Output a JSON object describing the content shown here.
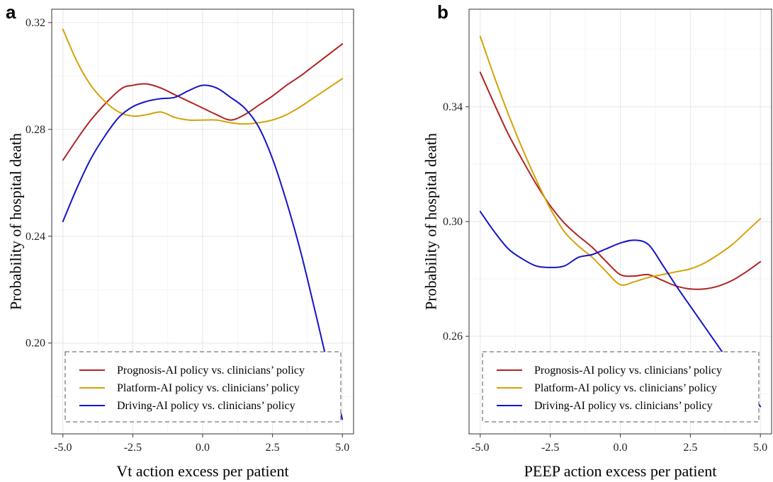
{
  "chart_data": [
    {
      "type": "line",
      "panel_label": "a",
      "xlabel": "Vt action excess per patient",
      "ylabel": "Probability of hospital death",
      "xlim": [
        -5.4,
        5.4
      ],
      "ylim": [
        0.166,
        0.325
      ],
      "x_ticks": [
        -5,
        -2.5,
        0,
        2.5,
        5
      ],
      "x_tick_labels": [
        "-5.0",
        "-2.5",
        "0.0",
        "2.5",
        "5.0"
      ],
      "y_ticks": [
        0.2,
        0.24,
        0.28,
        0.32
      ],
      "y_tick_labels": [
        "0.20",
        "0.24",
        "0.28",
        "0.32"
      ],
      "grid": true,
      "legend_position": "bottom",
      "series": [
        {
          "name": "Prognosis-AI policy vs. clinicians’ policy",
          "color": "#b22222",
          "x": [
            -5,
            -4,
            -3,
            -2.5,
            -2,
            -1.5,
            -1,
            -0.5,
            0,
            0.5,
            1,
            1.5,
            2,
            2.5,
            3,
            3.5,
            4,
            4.5,
            5
          ],
          "y": [
            0.2685,
            0.2835,
            0.2945,
            0.2965,
            0.297,
            0.2955,
            0.293,
            0.2905,
            0.288,
            0.2855,
            0.2835,
            0.2855,
            0.289,
            0.2925,
            0.2965,
            0.3,
            0.304,
            0.308,
            0.312
          ]
        },
        {
          "name": "Platform-AI policy vs. clinicians’ policy",
          "color": "#d4a20a",
          "x": [
            -5,
            -4.5,
            -4,
            -3.5,
            -3,
            -2.5,
            -2,
            -1.5,
            -1,
            -0.5,
            0,
            0.5,
            1,
            1.5,
            2,
            2.5,
            3,
            3.5,
            4,
            4.5,
            5
          ],
          "y": [
            0.3175,
            0.3055,
            0.2965,
            0.2905,
            0.2865,
            0.285,
            0.2855,
            0.2865,
            0.2845,
            0.2835,
            0.2835,
            0.2835,
            0.2825,
            0.282,
            0.2825,
            0.2835,
            0.2855,
            0.2885,
            0.292,
            0.2955,
            0.299
          ]
        },
        {
          "name": "Driving-AI policy vs. clinicians’ policy",
          "color": "#1414c8",
          "x": [
            -5,
            -4.5,
            -4,
            -3.5,
            -3,
            -2.5,
            -2,
            -1.5,
            -1,
            -0.5,
            0,
            0.5,
            1,
            1.5,
            2,
            2.5,
            3,
            3.5,
            4,
            4.5,
            5
          ],
          "y": [
            0.2455,
            0.258,
            0.269,
            0.2775,
            0.2845,
            0.2885,
            0.2905,
            0.2915,
            0.292,
            0.2945,
            0.2965,
            0.2955,
            0.292,
            0.288,
            0.281,
            0.269,
            0.253,
            0.2345,
            0.213,
            0.191,
            0.1715
          ]
        }
      ]
    },
    {
      "type": "line",
      "panel_label": "b",
      "xlabel": "PEEP action excess per patient",
      "ylabel": "Probability of hospital death",
      "xlim": [
        -5.4,
        5.4
      ],
      "ylim": [
        0.226,
        0.374
      ],
      "x_ticks": [
        -5,
        -2.5,
        0,
        2.5,
        5
      ],
      "x_tick_labels": [
        "-5.0",
        "-2.5",
        "0.0",
        "2.5",
        "5.0"
      ],
      "y_ticks": [
        0.26,
        0.3,
        0.34
      ],
      "y_tick_labels": [
        "0.26",
        "0.30",
        "0.34"
      ],
      "grid": true,
      "legend_position": "bottom",
      "series": [
        {
          "name": "Prognosis-AI policy vs. clinicians’ policy",
          "color": "#b22222",
          "x": [
            -5,
            -4.5,
            -4,
            -3.5,
            -3,
            -2.5,
            -2,
            -1.5,
            -1,
            -0.5,
            0,
            0.5,
            1,
            1.5,
            2,
            2.5,
            3,
            3.5,
            4,
            4.5,
            5
          ],
          "y": [
            0.352,
            0.341,
            0.3305,
            0.3215,
            0.313,
            0.3055,
            0.2995,
            0.295,
            0.291,
            0.286,
            0.2815,
            0.281,
            0.2815,
            0.2795,
            0.2775,
            0.2765,
            0.2765,
            0.2775,
            0.2795,
            0.2825,
            0.286
          ]
        },
        {
          "name": "Platform-AI policy vs. clinicians’ policy",
          "color": "#d4a20a",
          "x": [
            -5,
            -4.5,
            -4,
            -3.5,
            -3,
            -2.5,
            -2,
            -1.5,
            -1,
            -0.5,
            0,
            0.5,
            1,
            1.5,
            2,
            2.5,
            3,
            3.5,
            4,
            4.5,
            5
          ],
          "y": [
            0.3645,
            0.3505,
            0.3375,
            0.3255,
            0.3145,
            0.3045,
            0.2965,
            0.2915,
            0.2875,
            0.2825,
            0.278,
            0.279,
            0.2805,
            0.2815,
            0.2825,
            0.2835,
            0.2855,
            0.2885,
            0.292,
            0.2965,
            0.301
          ]
        },
        {
          "name": "Driving-AI policy vs. clinicians’ policy",
          "color": "#1414c8",
          "x": [
            -5,
            -4.5,
            -4,
            -3.5,
            -3,
            -2.5,
            -2,
            -1.5,
            -1,
            -0.5,
            0,
            0.5,
            1,
            1.5,
            2,
            2.5,
            3,
            3.5,
            4,
            4.5,
            5
          ],
          "y": [
            0.3035,
            0.2965,
            0.2905,
            0.287,
            0.2845,
            0.284,
            0.2845,
            0.2875,
            0.2885,
            0.2905,
            0.2925,
            0.2935,
            0.292,
            0.285,
            0.2775,
            0.2705,
            0.2635,
            0.2565,
            0.2495,
            0.2425,
            0.2355
          ]
        }
      ]
    }
  ]
}
